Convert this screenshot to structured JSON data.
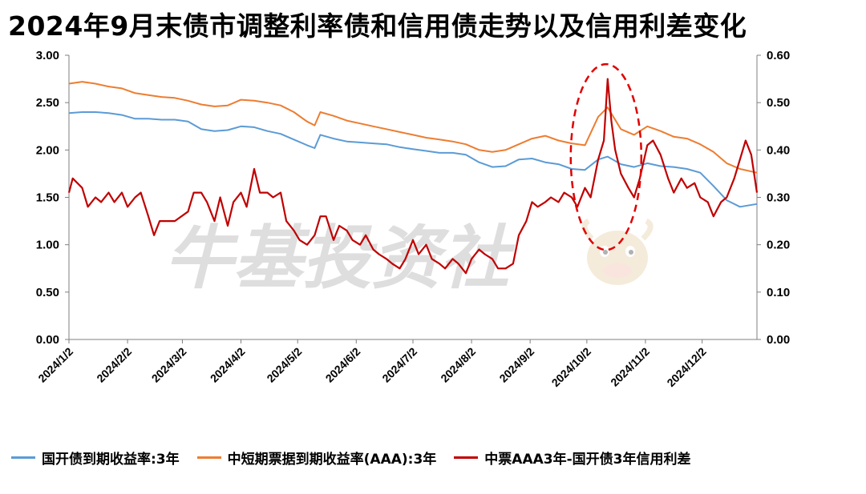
{
  "title": "2024年9月末债市调整利率债和信用债走势以及信用利差变化",
  "watermark": "牛基投资社",
  "chart_data": {
    "type": "line",
    "title": "2024年9月末债市调整利率债和信用债走势以及信用利差变化",
    "x_tick_labels": [
      "2024/1/2",
      "2024/2/2",
      "2024/3/2",
      "2024/4/2",
      "2024/5/2",
      "2024/6/2",
      "2024/7/2",
      "2024/8/2",
      "2024/9/2",
      "2024/10/2",
      "2024/11/2",
      "2024/12/2"
    ],
    "x_range": [
      "2024/1/2",
      "2024/12/31"
    ],
    "y_left": {
      "ticks": [
        "0.00",
        "0.50",
        "1.00",
        "1.50",
        "2.00",
        "2.50",
        "3.00"
      ],
      "range": [
        0,
        3
      ]
    },
    "y_right": {
      "ticks": [
        "0.00",
        "0.10",
        "0.20",
        "0.30",
        "0.40",
        "0.50",
        "0.60"
      ],
      "range": [
        0,
        0.6
      ]
    },
    "grid": false,
    "legend_position": "bottom",
    "series": [
      {
        "name": "国开债到期收益率:3年",
        "axis": "left",
        "color": "#5b9bd5",
        "points": [
          [
            "2024/1/2",
            2.39
          ],
          [
            "2024/1/9",
            2.4
          ],
          [
            "2024/1/16",
            2.4
          ],
          [
            "2024/1/23",
            2.39
          ],
          [
            "2024/1/30",
            2.37
          ],
          [
            "2024/2/6",
            2.33
          ],
          [
            "2024/2/13",
            2.33
          ],
          [
            "2024/2/20",
            2.32
          ],
          [
            "2024/2/27",
            2.32
          ],
          [
            "2024/3/5",
            2.3
          ],
          [
            "2024/3/12",
            2.22
          ],
          [
            "2024/3/19",
            2.2
          ],
          [
            "2024/3/26",
            2.21
          ],
          [
            "2024/4/2",
            2.25
          ],
          [
            "2024/4/9",
            2.24
          ],
          [
            "2024/4/16",
            2.2
          ],
          [
            "2024/4/23",
            2.17
          ],
          [
            "2024/4/30",
            2.11
          ],
          [
            "2024/5/7",
            2.05
          ],
          [
            "2024/5/11",
            2.02
          ],
          [
            "2024/5/14",
            2.16
          ],
          [
            "2024/5/21",
            2.12
          ],
          [
            "2024/5/28",
            2.09
          ],
          [
            "2024/6/4",
            2.08
          ],
          [
            "2024/6/11",
            2.07
          ],
          [
            "2024/6/18",
            2.06
          ],
          [
            "2024/6/25",
            2.03
          ],
          [
            "2024/7/2",
            2.01
          ],
          [
            "2024/7/9",
            1.99
          ],
          [
            "2024/7/16",
            1.97
          ],
          [
            "2024/7/23",
            1.97
          ],
          [
            "2024/7/30",
            1.95
          ],
          [
            "2024/8/6",
            1.87
          ],
          [
            "2024/8/13",
            1.82
          ],
          [
            "2024/8/20",
            1.83
          ],
          [
            "2024/8/27",
            1.9
          ],
          [
            "2024/9/3",
            1.91
          ],
          [
            "2024/9/10",
            1.87
          ],
          [
            "2024/9/17",
            1.85
          ],
          [
            "2024/9/24",
            1.8
          ],
          [
            "2024/10/1",
            1.79
          ],
          [
            "2024/10/8",
            1.9
          ],
          [
            "2024/10/13",
            1.93
          ],
          [
            "2024/10/20",
            1.85
          ],
          [
            "2024/10/27",
            1.82
          ],
          [
            "2024/11/3",
            1.86
          ],
          [
            "2024/11/10",
            1.83
          ],
          [
            "2024/11/17",
            1.82
          ],
          [
            "2024/11/24",
            1.8
          ],
          [
            "2024/12/1",
            1.76
          ],
          [
            "2024/12/8",
            1.62
          ],
          [
            "2024/12/15",
            1.47
          ],
          [
            "2024/12/22",
            1.4
          ],
          [
            "2024/12/31",
            1.43
          ]
        ]
      },
      {
        "name": "中短期票据到期收益率(AAA):3年",
        "axis": "left",
        "color": "#ed7d31",
        "points": [
          [
            "2024/1/2",
            2.7
          ],
          [
            "2024/1/9",
            2.72
          ],
          [
            "2024/1/16",
            2.7
          ],
          [
            "2024/1/23",
            2.67
          ],
          [
            "2024/1/30",
            2.65
          ],
          [
            "2024/2/6",
            2.6
          ],
          [
            "2024/2/13",
            2.58
          ],
          [
            "2024/2/20",
            2.56
          ],
          [
            "2024/2/27",
            2.55
          ],
          [
            "2024/3/5",
            2.52
          ],
          [
            "2024/3/12",
            2.48
          ],
          [
            "2024/3/19",
            2.46
          ],
          [
            "2024/3/26",
            2.47
          ],
          [
            "2024/4/2",
            2.53
          ],
          [
            "2024/4/9",
            2.52
          ],
          [
            "2024/4/16",
            2.5
          ],
          [
            "2024/4/23",
            2.47
          ],
          [
            "2024/4/30",
            2.4
          ],
          [
            "2024/5/7",
            2.3
          ],
          [
            "2024/5/11",
            2.26
          ],
          [
            "2024/5/14",
            2.4
          ],
          [
            "2024/5/21",
            2.36
          ],
          [
            "2024/5/28",
            2.31
          ],
          [
            "2024/6/4",
            2.28
          ],
          [
            "2024/6/11",
            2.25
          ],
          [
            "2024/6/18",
            2.22
          ],
          [
            "2024/6/25",
            2.19
          ],
          [
            "2024/7/2",
            2.16
          ],
          [
            "2024/7/9",
            2.13
          ],
          [
            "2024/7/16",
            2.11
          ],
          [
            "2024/7/23",
            2.09
          ],
          [
            "2024/7/30",
            2.06
          ],
          [
            "2024/8/6",
            2.0
          ],
          [
            "2024/8/13",
            1.98
          ],
          [
            "2024/8/20",
            2.0
          ],
          [
            "2024/8/27",
            2.06
          ],
          [
            "2024/9/3",
            2.12
          ],
          [
            "2024/9/10",
            2.15
          ],
          [
            "2024/9/17",
            2.1
          ],
          [
            "2024/9/24",
            2.07
          ],
          [
            "2024/10/1",
            2.05
          ],
          [
            "2024/10/8",
            2.35
          ],
          [
            "2024/10/13",
            2.45
          ],
          [
            "2024/10/20",
            2.22
          ],
          [
            "2024/10/27",
            2.16
          ],
          [
            "2024/11/3",
            2.25
          ],
          [
            "2024/11/10",
            2.2
          ],
          [
            "2024/11/17",
            2.14
          ],
          [
            "2024/11/24",
            2.12
          ],
          [
            "2024/12/1",
            2.06
          ],
          [
            "2024/12/8",
            1.98
          ],
          [
            "2024/12/15",
            1.86
          ],
          [
            "2024/12/22",
            1.8
          ],
          [
            "2024/12/31",
            1.76
          ]
        ]
      },
      {
        "name": "中票AAA3年-国开债3年信用利差",
        "axis": "right",
        "color": "#c00000",
        "points": [
          [
            "2024/1/2",
            0.31
          ],
          [
            "2024/1/4",
            0.34
          ],
          [
            "2024/1/9",
            0.32
          ],
          [
            "2024/1/12",
            0.28
          ],
          [
            "2024/1/16",
            0.3
          ],
          [
            "2024/1/19",
            0.29
          ],
          [
            "2024/1/23",
            0.31
          ],
          [
            "2024/1/26",
            0.29
          ],
          [
            "2024/1/30",
            0.31
          ],
          [
            "2024/2/2",
            0.28
          ],
          [
            "2024/2/6",
            0.3
          ],
          [
            "2024/2/9",
            0.31
          ],
          [
            "2024/2/13",
            0.26
          ],
          [
            "2024/2/16",
            0.22
          ],
          [
            "2024/2/19",
            0.25
          ],
          [
            "2024/2/27",
            0.25
          ],
          [
            "2024/3/5",
            0.27
          ],
          [
            "2024/3/8",
            0.31
          ],
          [
            "2024/3/12",
            0.31
          ],
          [
            "2024/3/15",
            0.29
          ],
          [
            "2024/3/19",
            0.25
          ],
          [
            "2024/3/22",
            0.3
          ],
          [
            "2024/3/26",
            0.24
          ],
          [
            "2024/3/29",
            0.29
          ],
          [
            "2024/4/2",
            0.31
          ],
          [
            "2024/4/5",
            0.28
          ],
          [
            "2024/4/9",
            0.36
          ],
          [
            "2024/4/12",
            0.31
          ],
          [
            "2024/4/16",
            0.31
          ],
          [
            "2024/4/19",
            0.3
          ],
          [
            "2024/4/23",
            0.31
          ],
          [
            "2024/4/26",
            0.25
          ],
          [
            "2024/4/30",
            0.23
          ],
          [
            "2024/5/3",
            0.21
          ],
          [
            "2024/5/7",
            0.2
          ],
          [
            "2024/5/11",
            0.22
          ],
          [
            "2024/5/14",
            0.26
          ],
          [
            "2024/5/17",
            0.26
          ],
          [
            "2024/5/21",
            0.21
          ],
          [
            "2024/5/24",
            0.24
          ],
          [
            "2024/5/28",
            0.23
          ],
          [
            "2024/5/31",
            0.21
          ],
          [
            "2024/6/4",
            0.2
          ],
          [
            "2024/6/7",
            0.22
          ],
          [
            "2024/6/11",
            0.19
          ],
          [
            "2024/6/14",
            0.18
          ],
          [
            "2024/6/18",
            0.17
          ],
          [
            "2024/6/21",
            0.16
          ],
          [
            "2024/6/25",
            0.15
          ],
          [
            "2024/6/28",
            0.17
          ],
          [
            "2024/7/2",
            0.21
          ],
          [
            "2024/7/5",
            0.18
          ],
          [
            "2024/7/9",
            0.2
          ],
          [
            "2024/7/12",
            0.17
          ],
          [
            "2024/7/16",
            0.16
          ],
          [
            "2024/7/19",
            0.15
          ],
          [
            "2024/7/23",
            0.17
          ],
          [
            "2024/7/26",
            0.16
          ],
          [
            "2024/7/30",
            0.14
          ],
          [
            "2024/8/2",
            0.17
          ],
          [
            "2024/8/6",
            0.19
          ],
          [
            "2024/8/9",
            0.18
          ],
          [
            "2024/8/13",
            0.17
          ],
          [
            "2024/8/16",
            0.15
          ],
          [
            "2024/8/20",
            0.15
          ],
          [
            "2024/8/24",
            0.16
          ],
          [
            "2024/8/27",
            0.22
          ],
          [
            "2024/8/31",
            0.25
          ],
          [
            "2024/9/3",
            0.29
          ],
          [
            "2024/9/6",
            0.28
          ],
          [
            "2024/9/10",
            0.29
          ],
          [
            "2024/9/13",
            0.3
          ],
          [
            "2024/9/17",
            0.29
          ],
          [
            "2024/9/20",
            0.31
          ],
          [
            "2024/9/24",
            0.3
          ],
          [
            "2024/9/27",
            0.28
          ],
          [
            "2024/10/1",
            0.32
          ],
          [
            "2024/10/4",
            0.3
          ],
          [
            "2024/10/8",
            0.38
          ],
          [
            "2024/10/11",
            0.42
          ],
          [
            "2024/10/13",
            0.55
          ],
          [
            "2024/10/15",
            0.46
          ],
          [
            "2024/10/17",
            0.4
          ],
          [
            "2024/10/20",
            0.35
          ],
          [
            "2024/10/24",
            0.32
          ],
          [
            "2024/10/27",
            0.3
          ],
          [
            "2024/10/30",
            0.34
          ],
          [
            "2024/11/3",
            0.41
          ],
          [
            "2024/11/6",
            0.42
          ],
          [
            "2024/11/10",
            0.39
          ],
          [
            "2024/11/14",
            0.34
          ],
          [
            "2024/11/17",
            0.31
          ],
          [
            "2024/11/21",
            0.34
          ],
          [
            "2024/11/24",
            0.32
          ],
          [
            "2024/11/28",
            0.33
          ],
          [
            "2024/12/1",
            0.3
          ],
          [
            "2024/12/5",
            0.29
          ],
          [
            "2024/12/8",
            0.26
          ],
          [
            "2024/12/12",
            0.29
          ],
          [
            "2024/12/15",
            0.3
          ],
          [
            "2024/12/19",
            0.34
          ],
          [
            "2024/12/22",
            0.38
          ],
          [
            "2024/12/25",
            0.42
          ],
          [
            "2024/12/28",
            0.39
          ],
          [
            "2024/12/31",
            0.31
          ]
        ]
      }
    ],
    "annotation": {
      "type": "dashed-ellipse",
      "color": "#e00000",
      "center": [
        "2024/10/13",
        2.45
      ]
    }
  }
}
